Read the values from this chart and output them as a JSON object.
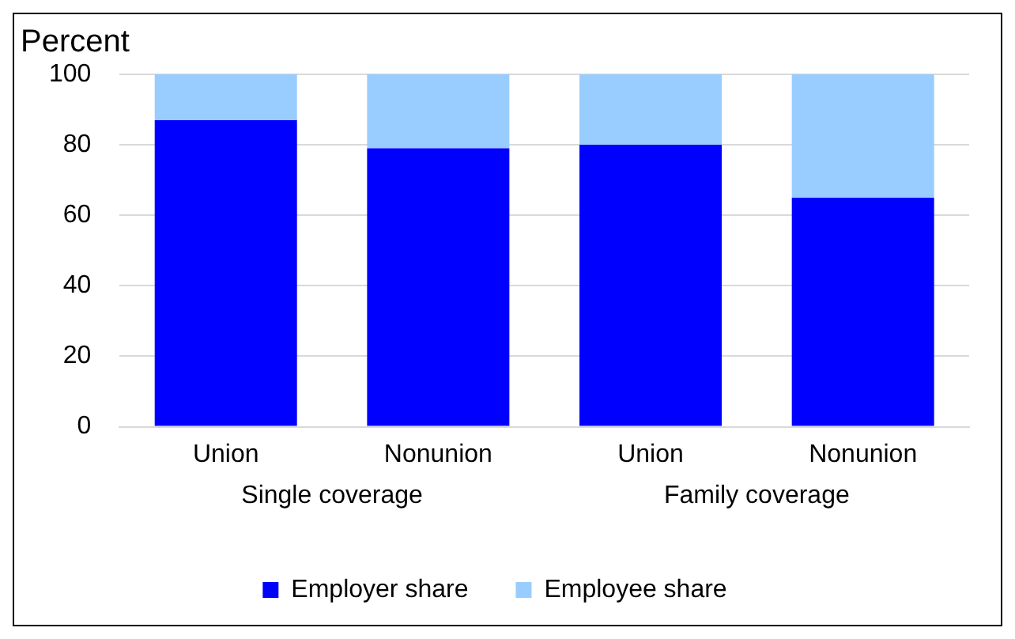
{
  "chart_data": {
    "type": "bar",
    "ylabel": "Percent",
    "categories": [
      "Union",
      "Nonunion",
      "Union",
      "Nonunion"
    ],
    "annotations": [
      "Single coverage",
      "Family coverage"
    ],
    "series": [
      {
        "name": "Employer share",
        "color": "#0000ff",
        "values": [
          87,
          79,
          80,
          65
        ]
      },
      {
        "name": "Employee share",
        "color": "#99ccff",
        "values": [
          13,
          21,
          20,
          35
        ]
      }
    ],
    "stacked": true,
    "ylim": [
      0,
      100
    ],
    "yticks": [
      0,
      20,
      40,
      60,
      80,
      100
    ],
    "grid": "y",
    "legend": "bottom"
  }
}
